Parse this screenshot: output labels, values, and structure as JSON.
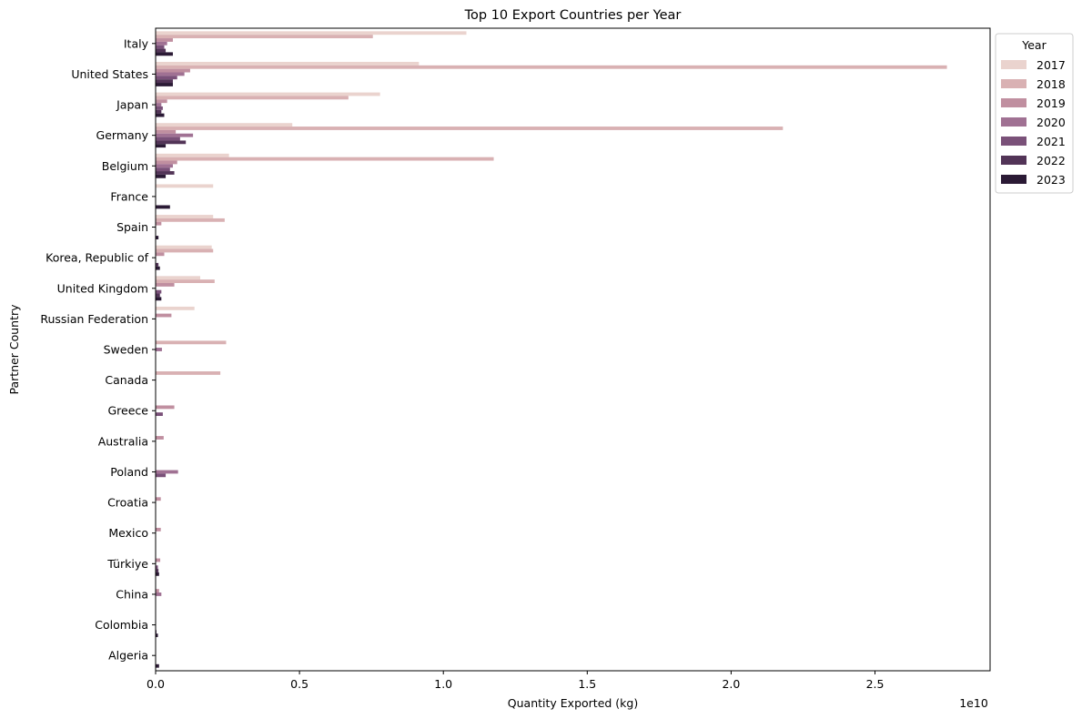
{
  "chart_data": {
    "type": "bar",
    "orientation": "horizontal",
    "title": "Top 10 Export Countries per Year",
    "xlabel": "Quantity Exported (kg)",
    "ylabel": "Partner Country",
    "x_scale_label": "1e10",
    "xlim": [
      0,
      2.9
    ],
    "x_ticks": [
      "0.0",
      "0.5",
      "1.0",
      "1.5",
      "2.0",
      "2.5"
    ],
    "x_tick_values": [
      0,
      0.5,
      1.0,
      1.5,
      2.0,
      2.5
    ],
    "grid": false,
    "legend_title": "Year",
    "legend_position": "upper-right-outside",
    "categories": [
      "Italy",
      "United States",
      "Japan",
      "Germany",
      "Belgium",
      "France",
      "Spain",
      "Korea, Republic of",
      "United Kingdom",
      "Russian Federation",
      "Sweden",
      "Canada",
      "Greece",
      "Australia",
      "Poland",
      "Croatia",
      "Mexico",
      "Türkiye",
      "China",
      "Colombia",
      "Algeria"
    ],
    "series": [
      {
        "name": "2017",
        "color": "#ead3ce",
        "values": [
          1.08,
          0.915,
          0.78,
          0.475,
          0.255,
          0.2,
          0.2,
          0.195,
          0.155,
          0.135,
          0,
          0,
          0,
          0,
          0,
          0,
          0,
          0,
          0,
          0,
          0
        ]
      },
      {
        "name": "2018",
        "color": "#d9b1b3",
        "values": [
          0.755,
          2.75,
          0.67,
          2.18,
          1.175,
          0,
          0.24,
          0.2,
          0.205,
          0,
          0.245,
          0.225,
          0,
          0,
          0,
          0,
          0,
          0,
          0,
          0,
          0
        ]
      },
      {
        "name": "2019",
        "color": "#c08fa0",
        "values": [
          0.06,
          0.12,
          0.04,
          0.07,
          0.075,
          0,
          0.02,
          0.03,
          0.065,
          0.055,
          0,
          0,
          0.065,
          0.028,
          0,
          0.018,
          0.018,
          0.016,
          0.012,
          0,
          0
        ]
      },
      {
        "name": "2020",
        "color": "#a07193",
        "values": [
          0.04,
          0.1,
          0.02,
          0.13,
          0.06,
          0,
          0,
          0,
          0,
          0,
          0.022,
          0,
          0,
          0,
          0.078,
          0,
          0,
          0,
          0.02,
          0,
          0
        ]
      },
      {
        "name": "2021",
        "color": "#7a5179",
        "values": [
          0.03,
          0.075,
          0.025,
          0.085,
          0.05,
          0,
          0,
          0,
          0.02,
          0,
          0,
          0,
          0.025,
          0,
          0.035,
          0,
          0,
          0.008,
          0,
          0,
          0
        ]
      },
      {
        "name": "2022",
        "color": "#523457",
        "values": [
          0.035,
          0.06,
          0.02,
          0.105,
          0.065,
          0,
          0,
          0.01,
          0.015,
          0,
          0,
          0,
          0,
          0,
          0,
          0,
          0,
          0.01,
          0,
          0.003,
          0
        ]
      },
      {
        "name": "2023",
        "color": "#2b1a35",
        "values": [
          0.06,
          0.06,
          0.03,
          0.035,
          0.035,
          0.05,
          0.01,
          0.015,
          0.02,
          0,
          0,
          0,
          0,
          0,
          0,
          0,
          0,
          0.012,
          0,
          0.008,
          0.012
        ]
      }
    ]
  }
}
